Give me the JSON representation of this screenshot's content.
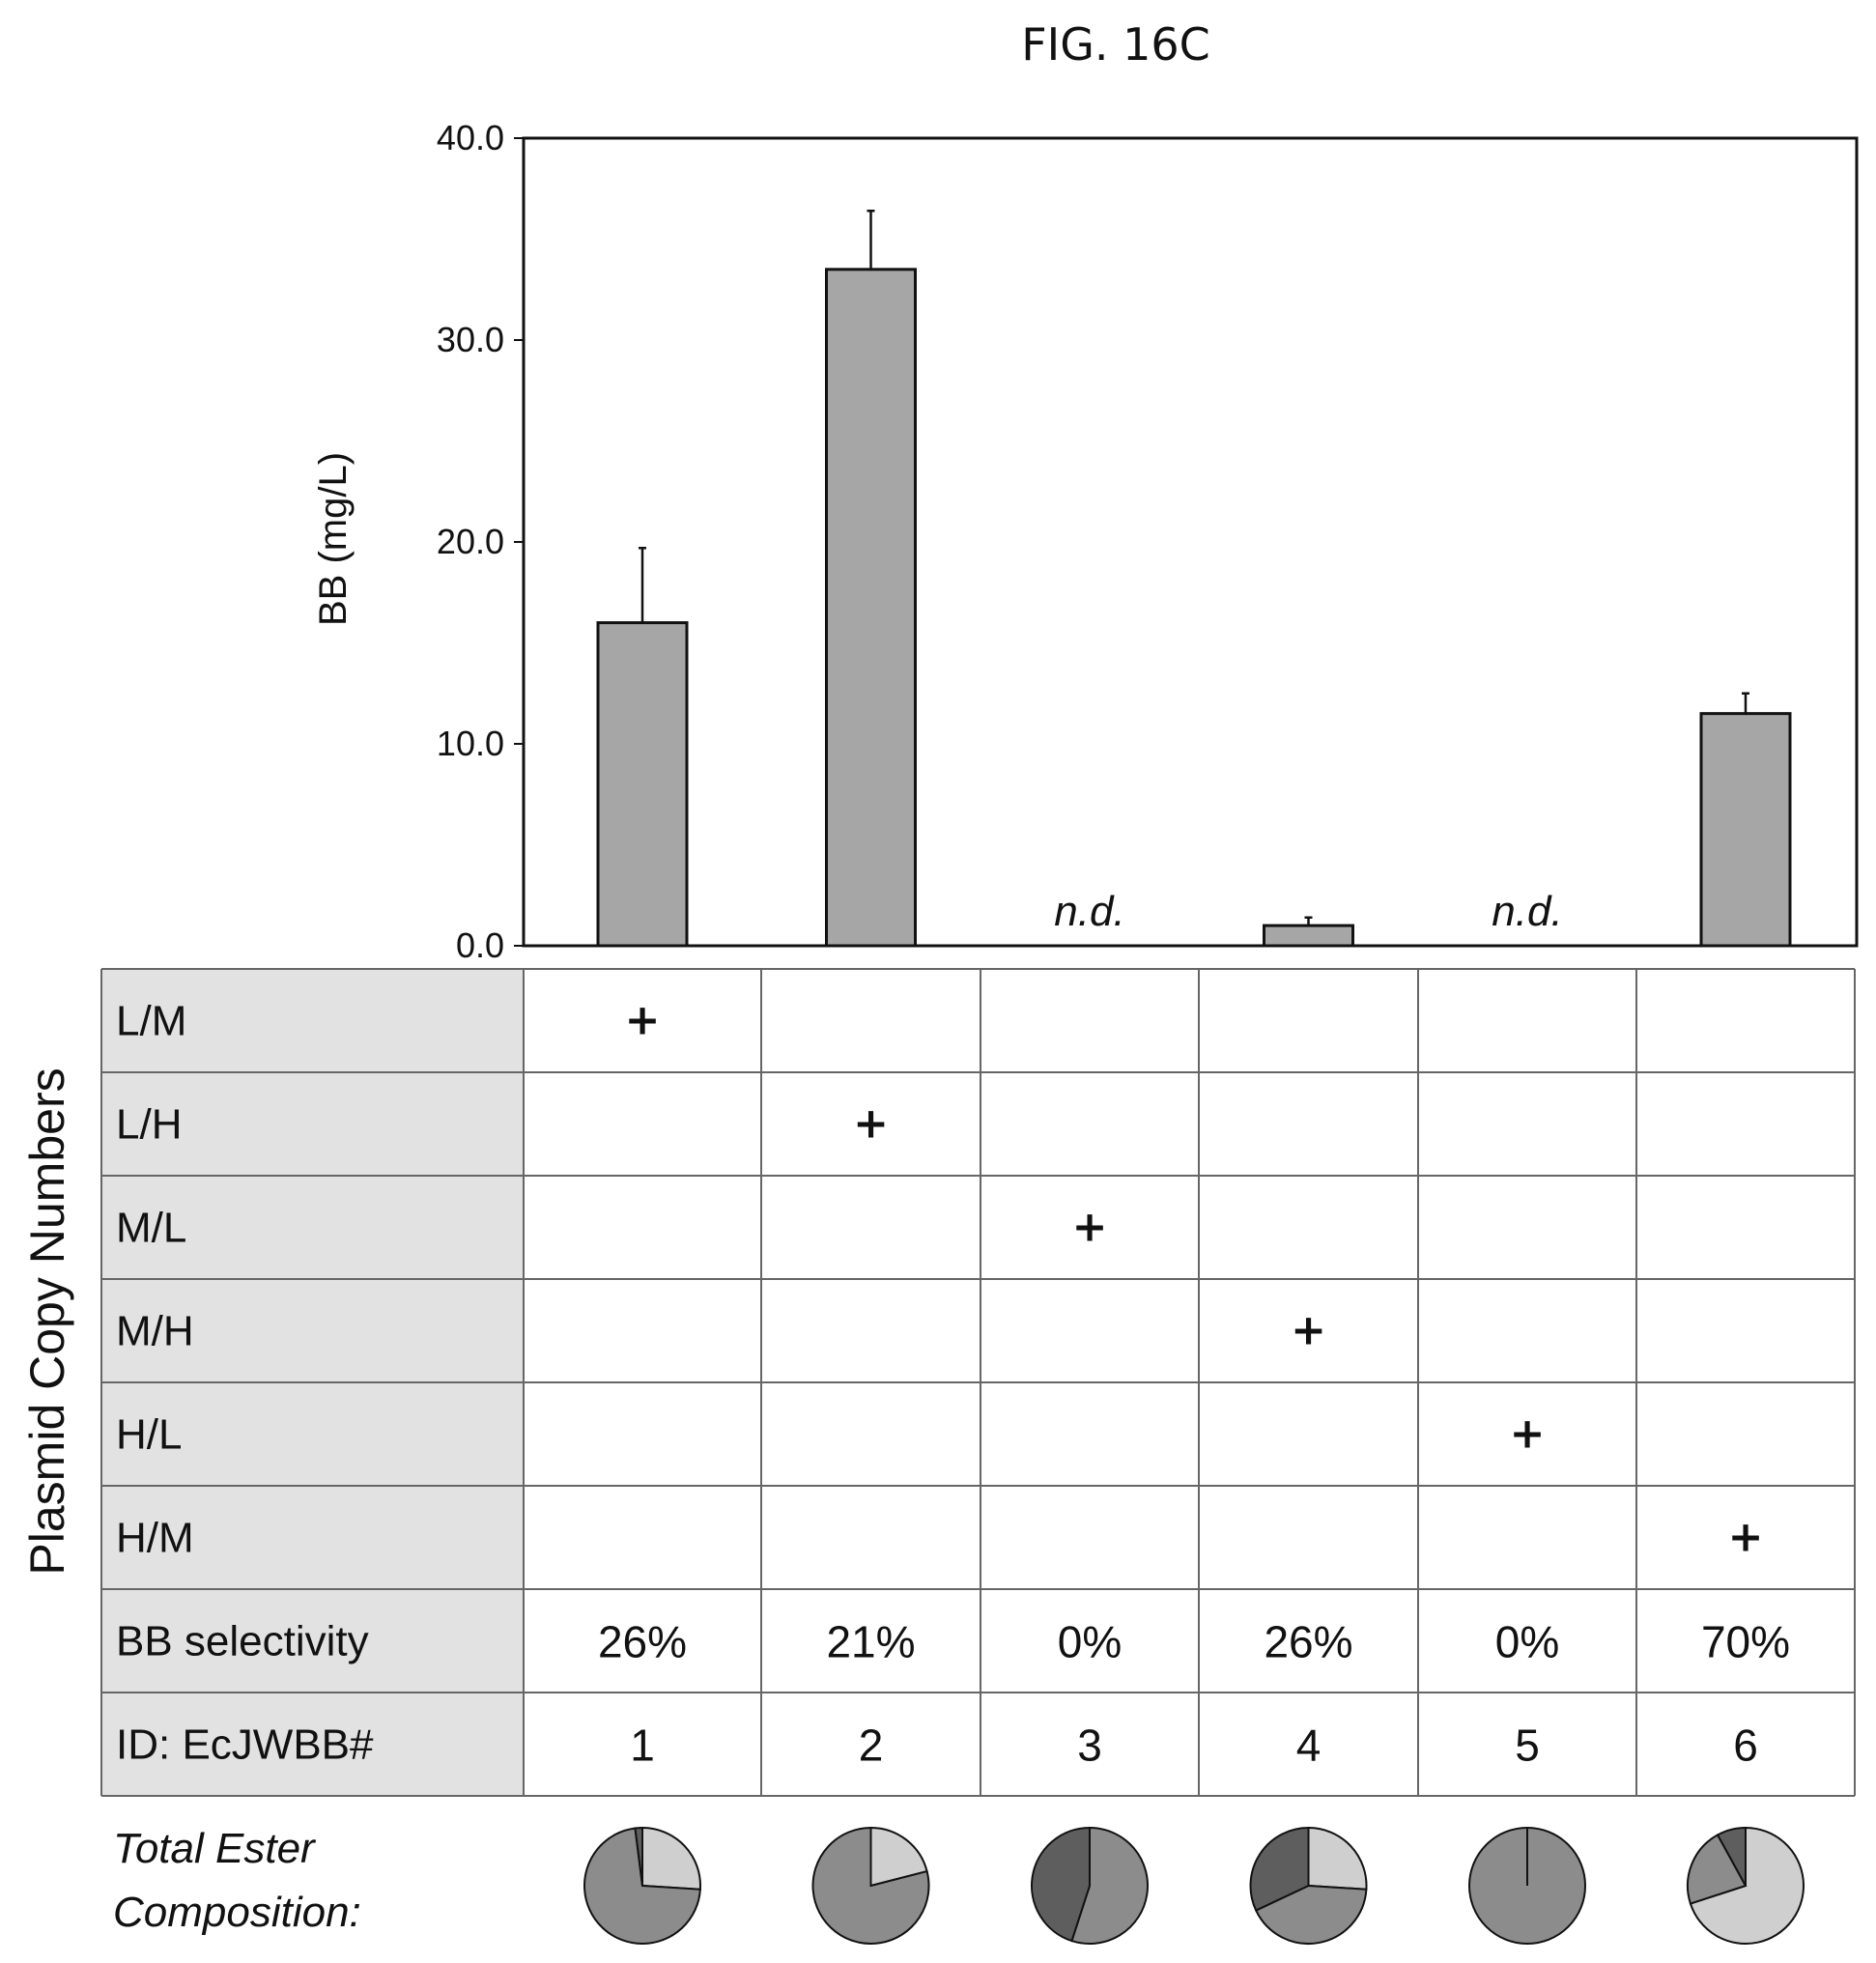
{
  "chart_data": {
    "type": "bar",
    "title": "FIG. 16C",
    "ylabel": "BB (mg/L)",
    "ylim": [
      0,
      40
    ],
    "yticks": [
      "0.0",
      "10.0",
      "20.0",
      "30.0",
      "40.0"
    ],
    "grid": false,
    "categories": [
      "1",
      "2",
      "3",
      "4",
      "5",
      "6"
    ],
    "values": [
      16.0,
      33.5,
      null,
      1.0,
      null,
      11.5
    ],
    "errors": [
      3.7,
      2.9,
      0,
      0.4,
      0,
      1.0
    ],
    "annotations": [
      "",
      "",
      "n.d.",
      "",
      "n.d.",
      ""
    ],
    "bar_color": "#a6a6a6"
  },
  "table": {
    "side_label": "Plasmid Copy Numbers",
    "rows": [
      {
        "label": "L/M",
        "values": [
          "+",
          "",
          "",
          "",
          "",
          ""
        ]
      },
      {
        "label": "L/H",
        "values": [
          "",
          "+",
          "",
          "",
          "",
          ""
        ]
      },
      {
        "label": "M/L",
        "values": [
          "",
          "",
          "+",
          "",
          "",
          ""
        ]
      },
      {
        "label": "M/H",
        "values": [
          "",
          "",
          "",
          "+",
          "",
          ""
        ]
      },
      {
        "label": "H/L",
        "values": [
          "",
          "",
          "",
          "",
          "+",
          ""
        ]
      },
      {
        "label": "H/M",
        "values": [
          "",
          "",
          "",
          "",
          "",
          "+"
        ]
      },
      {
        "label": "BB selectivity",
        "values": [
          "26%",
          "21%",
          "0%",
          "26%",
          "0%",
          "70%"
        ]
      },
      {
        "label": "ID: EcJWBB#",
        "values": [
          "1",
          "2",
          "3",
          "4",
          "5",
          "6"
        ]
      }
    ],
    "label_cell_color": "#e2e2e2"
  },
  "composition": {
    "label_line1": "Total Ester",
    "label_line2": "Composition:",
    "pies": [
      [
        0.26,
        0.72,
        0.02
      ],
      [
        0.21,
        0.79,
        0.0
      ],
      [
        0.0,
        0.55,
        0.45
      ],
      [
        0.26,
        0.42,
        0.32
      ],
      [
        0.0,
        1.0,
        0.0
      ],
      [
        0.7,
        0.22,
        0.08
      ]
    ],
    "slice_colors": [
      "#cfcfcf",
      "#8c8c8c",
      "#5e5e5e"
    ]
  }
}
